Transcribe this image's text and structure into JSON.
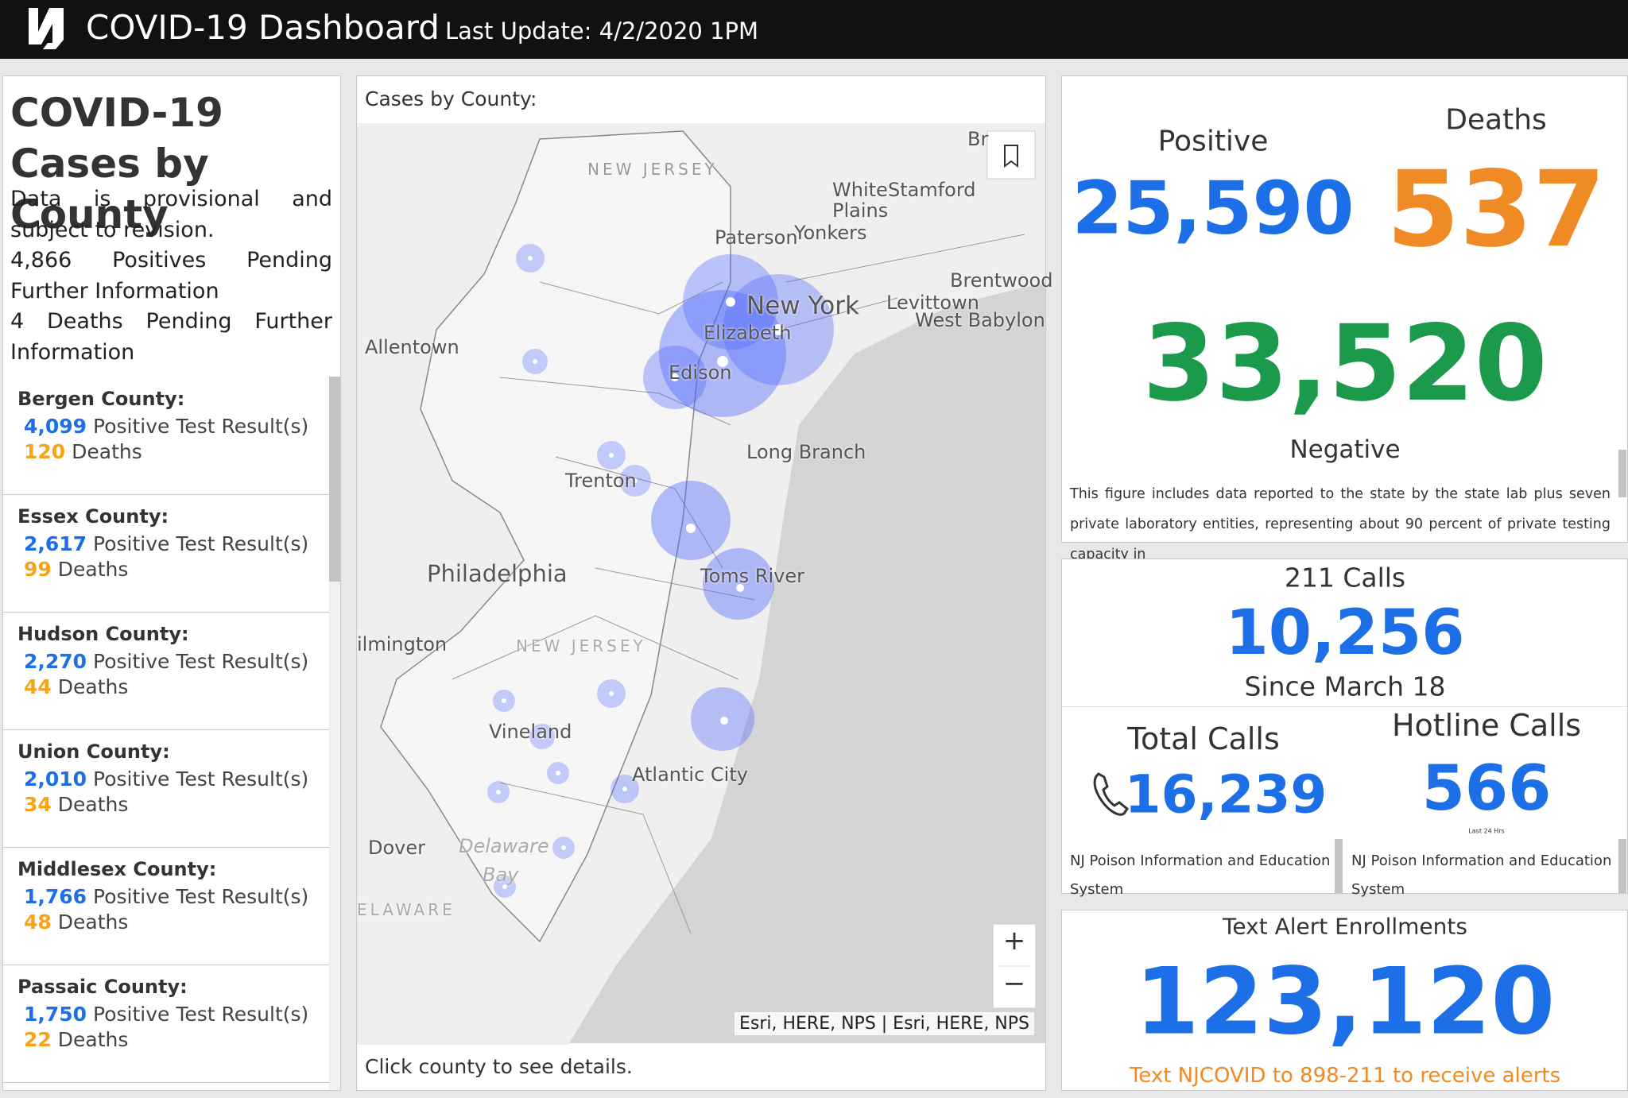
{
  "header": {
    "title": "COVID-19 Dashboard",
    "last_update": "Last Update: 4/2/2020 1PM"
  },
  "cases_panel": {
    "title_lines": [
      "COVID-19",
      "Cases by County"
    ],
    "notes": [
      "Data is provisional and subject to revision.",
      "4,866 Positives Pending Further Information",
      "4 Deaths Pending Further Information"
    ],
    "counties": [
      {
        "name": "Bergen County:",
        "positives": "4,099",
        "positive_label": "Positive Test Result(s)",
        "deaths": "120",
        "deaths_label": "Deaths"
      },
      {
        "name": "Essex County:",
        "positives": "2,617",
        "positive_label": "Positive Test Result(s)",
        "deaths": "99",
        "deaths_label": "Deaths"
      },
      {
        "name": "Hudson County:",
        "positives": "2,270",
        "positive_label": "Positive Test Result(s)",
        "deaths": "44",
        "deaths_label": "Deaths"
      },
      {
        "name": "Union County:",
        "positives": "2,010",
        "positive_label": "Positive Test Result(s)",
        "deaths": "34",
        "deaths_label": "Deaths"
      },
      {
        "name": "Middlesex County:",
        "positives": "1,766",
        "positive_label": "Positive Test Result(s)",
        "deaths": "48",
        "deaths_label": "Deaths"
      },
      {
        "name": "Passaic County:",
        "positives": "1,750",
        "positive_label": "Positive Test Result(s)",
        "deaths": "22",
        "deaths_label": "Deaths"
      }
    ]
  },
  "map": {
    "title": "Cases by County:",
    "places": [
      "NEW JERSEY",
      "White",
      "Stamford",
      "Plains",
      "Paterson",
      "Yonkers",
      "Brentwood",
      "New York",
      "Levittown",
      "West Babylon",
      "Elizabeth",
      "Allentown",
      "Edison",
      "Long Branch",
      "Trenton",
      "Philadelphia",
      "Toms River",
      "ilmington",
      "NEW JERSEY",
      "Vineland",
      "Atlantic City",
      "Dover",
      "Delaware",
      "Bay",
      "ELAWARE",
      "Br"
    ],
    "zoom_in": "+",
    "zoom_out": "−",
    "attribution": "Esri, HERE, NPS | Esri, HERE, NPS",
    "footer": "Click county to see details."
  },
  "totals": {
    "positive_label": "Positive",
    "positive": "25,590",
    "deaths_label": "Deaths",
    "deaths": "537",
    "negative": "33,520",
    "negative_label": "Negative",
    "note": "This figure includes data reported to the state by the state lab plus seven private laboratory entities, representing about 90 percent of private testing capacity in"
  },
  "calls": {
    "title": "211 Calls",
    "value": "10,256",
    "since": "Since March 18",
    "total_label": "Total Calls",
    "total": "16,239",
    "hotline_label": "Hotline Calls",
    "hotline": "566",
    "hotline_note": "Last 24 Hrs",
    "source_left": "NJ Poison Information and Education System",
    "source_right": "NJ Poison Information and Education System"
  },
  "alerts": {
    "title": "Text Alert Enrollments",
    "value": "123,120",
    "cta": "Text NJCOVID to 898-211 to receive alerts"
  }
}
